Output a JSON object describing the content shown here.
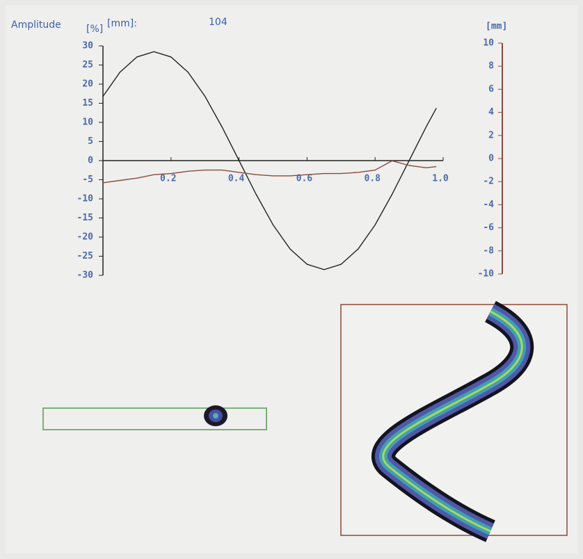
{
  "chart_data": {
    "type": "line",
    "title": "Amplitude",
    "ylabel": "[%]",
    "title_unit": "[mm]:",
    "title_value": 104,
    "y2label": "[mm]",
    "x": [
      0,
      0.05,
      0.1,
      0.15,
      0.2,
      0.25,
      0.3,
      0.35,
      0.4,
      0.45,
      0.5,
      0.55,
      0.6,
      0.65,
      0.7,
      0.75,
      0.8,
      0.85,
      0.9,
      0.95,
      0.98
    ],
    "series": [
      {
        "color": "#222222",
        "values": [
          16.8,
          23.1,
          27.1,
          28.5,
          27.1,
          23.1,
          16.8,
          8.8,
          0,
          -8.8,
          -16.8,
          -23.1,
          -27.1,
          -28.5,
          -27.1,
          -23.1,
          -16.8,
          -8.8,
          0,
          8.8,
          13.7
        ]
      },
      {
        "color": "#8a4a3a",
        "axis": "y2",
        "values": [
          -2.1,
          -1.9,
          -1.7,
          -1.4,
          -1.3,
          -1.1,
          -1.0,
          -1.0,
          -1.2,
          -1.4,
          -1.5,
          -1.5,
          -1.4,
          -1.3,
          -1.3,
          -1.2,
          -1.0,
          -0.2,
          -0.6,
          -0.8,
          -0.7
        ]
      }
    ],
    "xlim": [
      0,
      1
    ],
    "xticks": [
      0.2,
      0.4,
      0.6,
      0.8,
      {
        "value": 1,
        "label": "1.0"
      }
    ],
    "ylim": [
      -30,
      30
    ],
    "yticks": [
      -30,
      -25,
      -20,
      -15,
      -10,
      -5,
      0,
      5,
      10,
      15,
      20,
      25,
      30
    ],
    "y2lim": [
      -10,
      10
    ],
    "y2ticks": [
      -10,
      -8,
      -6,
      -4,
      -2,
      0,
      2,
      4,
      6,
      8,
      10
    ],
    "axis_color": "#222222",
    "y2_axis_color": "#8a4a3a"
  }
}
